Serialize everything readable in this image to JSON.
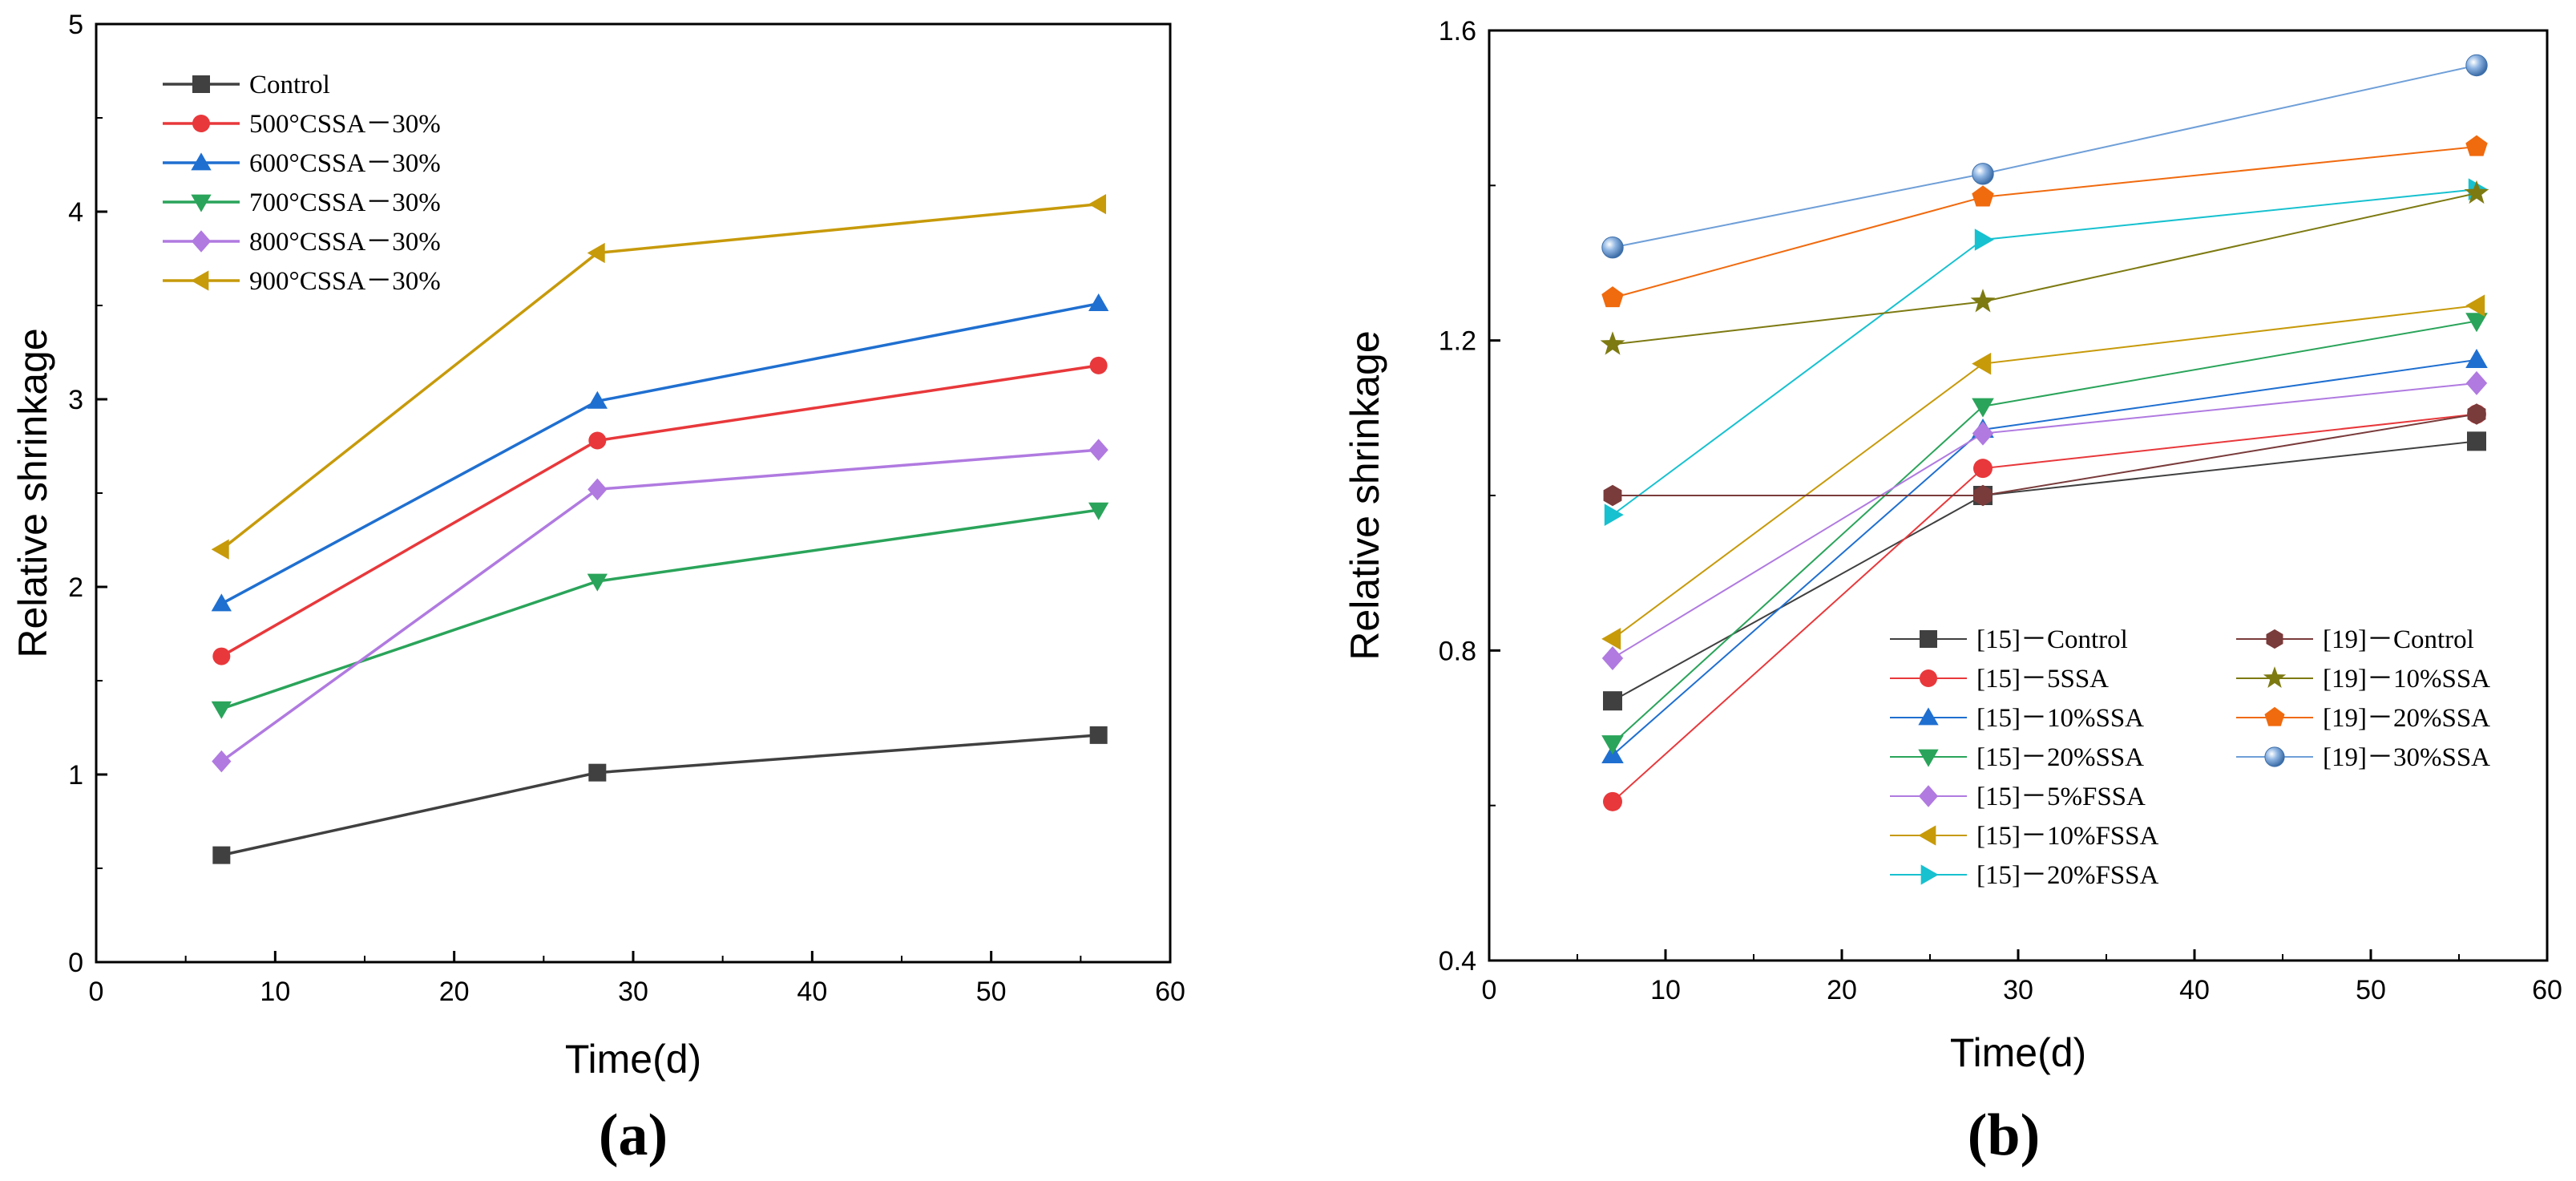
{
  "chart_data": [
    {
      "type": "line",
      "panel_label": "(a)",
      "xlabel": "Time(d)",
      "ylabel": "Relative shrinkage",
      "xlim": [
        0,
        60
      ],
      "ylim": [
        0,
        5
      ],
      "xticks": [
        0,
        10,
        20,
        30,
        40,
        50,
        60
      ],
      "yticks": [
        0,
        1,
        2,
        3,
        4,
        5
      ],
      "legend_position": "top-left",
      "x": [
        7,
        28,
        56
      ],
      "series": [
        {
          "name": "Control",
          "color": "#404040",
          "marker": "square",
          "values": [
            0.57,
            1.01,
            1.21
          ]
        },
        {
          "name": "500°CSSA－30%",
          "color": "#e8383b",
          "marker": "circle",
          "values": [
            1.63,
            2.78,
            3.18
          ]
        },
        {
          "name": "600°CSSA－30%",
          "color": "#1f6fd0",
          "marker": "triangle-up",
          "values": [
            1.91,
            2.99,
            3.51
          ]
        },
        {
          "name": "700°CSSA－30%",
          "color": "#2aa45a",
          "marker": "triangle-down",
          "values": [
            1.35,
            2.03,
            2.41
          ]
        },
        {
          "name": "800°CSSA－30%",
          "color": "#b07ae0",
          "marker": "diamond",
          "values": [
            1.07,
            2.52,
            2.73
          ]
        },
        {
          "name": "900°CSSA－30%",
          "color": "#c79a0a",
          "marker": "triangle-left",
          "values": [
            2.2,
            3.78,
            4.04
          ]
        }
      ]
    },
    {
      "type": "line",
      "panel_label": "(b)",
      "xlabel": "Time(d)",
      "ylabel": "Relative shrinkage",
      "xlim": [
        0,
        60
      ],
      "ylim": [
        0.4,
        1.6
      ],
      "xticks": [
        0,
        10,
        20,
        30,
        40,
        50,
        60
      ],
      "yticks": [
        0.4,
        0.8,
        1.2,
        1.6
      ],
      "legend_position": "bottom-right",
      "x": [
        7,
        28,
        56
      ],
      "series": [
        {
          "name": "[15]－Control",
          "color": "#404040",
          "marker": "square",
          "values": [
            0.735,
            1.0,
            1.07
          ]
        },
        {
          "name": "[15]－5SSA",
          "color": "#e8383b",
          "marker": "circle",
          "values": [
            0.605,
            1.035,
            1.105
          ]
        },
        {
          "name": "[15]－10%SSA",
          "color": "#1f6fd0",
          "marker": "triangle-up",
          "values": [
            0.665,
            1.085,
            1.175
          ]
        },
        {
          "name": "[15]－20%SSA",
          "color": "#2aa45a",
          "marker": "triangle-down",
          "values": [
            0.68,
            1.115,
            1.225
          ]
        },
        {
          "name": "[15]－5%FSSA",
          "color": "#b07ae0",
          "marker": "diamond",
          "values": [
            0.79,
            1.08,
            1.145
          ]
        },
        {
          "name": "[15]－10%FSSA",
          "color": "#c79a0a",
          "marker": "triangle-left",
          "values": [
            0.815,
            1.17,
            1.245
          ]
        },
        {
          "name": "[15]－20%FSSA",
          "color": "#17c1cf",
          "marker": "triangle-right",
          "values": [
            0.975,
            1.33,
            1.395
          ]
        },
        {
          "name": "[19]－Control",
          "color": "#7a3b3b",
          "marker": "hexagon",
          "values": [
            1.0,
            1.0,
            1.105
          ]
        },
        {
          "name": "[19]－10%SSA",
          "color": "#7d7a12",
          "marker": "star",
          "values": [
            1.195,
            1.25,
            1.39
          ]
        },
        {
          "name": "[19]－20%SSA",
          "color": "#f06a0e",
          "marker": "pentagon",
          "values": [
            1.255,
            1.385,
            1.45
          ]
        },
        {
          "name": "[19]－30%SSA",
          "color": "#6f9fd8",
          "marker": "sphere",
          "values": [
            1.32,
            1.415,
            1.555
          ]
        }
      ]
    }
  ]
}
